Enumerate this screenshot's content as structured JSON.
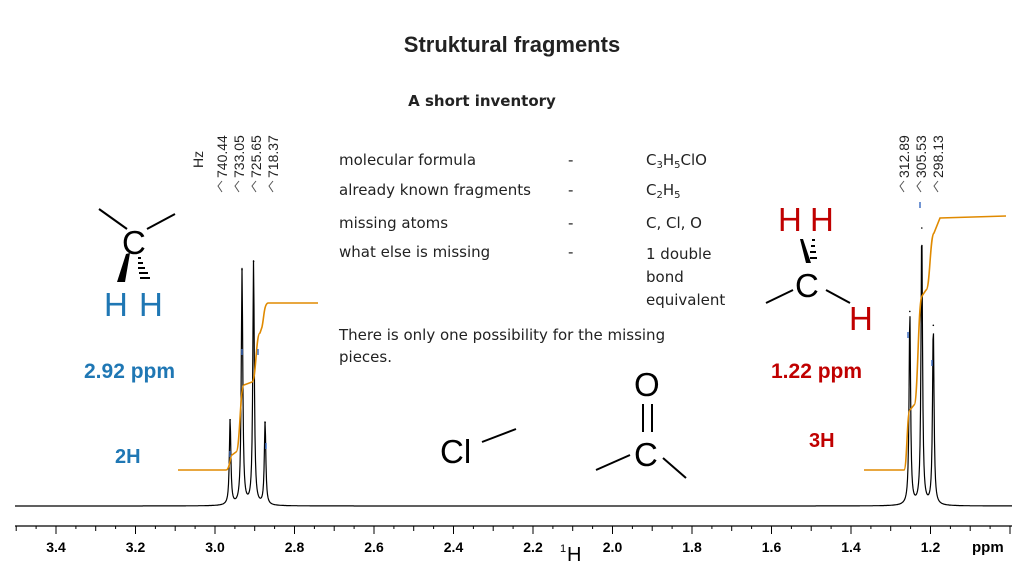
{
  "title": "Struktural fragments",
  "subtitle": "A short inventory",
  "inventory": [
    {
      "label": "molecular formula",
      "dash": "-",
      "value": "C3H5ClO"
    },
    {
      "label": "already known fragments",
      "dash": "-",
      "value": "C2H5"
    },
    {
      "label": "missing atoms",
      "dash": "-",
      "value": "C, Cl, O"
    },
    {
      "label": "what else is missing",
      "dash": "-",
      "value": "1 double bond equivalent"
    }
  ],
  "formula_parts": {
    "c": "C",
    "c_n": "3",
    "h": "H",
    "h_n": "5",
    "rest": "ClO",
    "c2": "C",
    "c2_n": "2",
    "h2": "H",
    "h2_n": "5"
  },
  "value_lines": {
    "l1": "1 double",
    "l2": "bond",
    "l3": "equivalent"
  },
  "note": {
    "line1": "There is only one possibility for the missing",
    "line2": "pieces."
  },
  "peak_labels": {
    "unit": "Hz",
    "left": [
      "740.44",
      "733.05",
      "725.65",
      "718.37"
    ],
    "right": [
      "312.89",
      "305.53",
      "298.13"
    ]
  },
  "fragments": {
    "ch2": {
      "atom": "C",
      "h1": "H",
      "h2": "H",
      "shift": "2.92 ppm",
      "integral": "2H",
      "color": "#1f77b4"
    },
    "ch3": {
      "atom": "C",
      "h1": "H",
      "h2": "H",
      "h3": "H",
      "shift": "1.22 ppm",
      "integral": "3H",
      "color": "#c00000"
    },
    "chloro": {
      "atom": "Cl"
    },
    "carbonyl": {
      "o": "O",
      "c": "C"
    }
  },
  "axis": {
    "unit": "ppm",
    "nucleus_mass": "1",
    "nucleus": "H",
    "ticks": [
      "3.4",
      "3.2",
      "3.0",
      "2.8",
      "2.6",
      "2.4",
      "2.2",
      "2.0",
      "1.8",
      "1.6",
      "1.4",
      "1.2"
    ]
  },
  "chart_data": {
    "type": "line",
    "xlabel": "ppm",
    "nucleus": "1H",
    "xlim": [
      3.5,
      1.0
    ],
    "reversed_x": true,
    "peaks": [
      {
        "ppm": 2.962,
        "height": 0.31,
        "label": "740.44"
      },
      {
        "ppm": 2.932,
        "height": 0.85,
        "label": "733.05"
      },
      {
        "ppm": 2.903,
        "height": 0.88,
        "label": "725.65"
      },
      {
        "ppm": 2.874,
        "height": 0.3,
        "label": "718.37"
      },
      {
        "ppm": 1.252,
        "height": 0.7,
        "label": "312.89"
      },
      {
        "ppm": 1.222,
        "height": 1.0,
        "label": "305.53"
      },
      {
        "ppm": 1.193,
        "height": 0.65,
        "label": "298.13"
      }
    ],
    "integrals": [
      {
        "range": [
          2.98,
          2.86
        ],
        "value": "2H",
        "center": 2.92
      },
      {
        "range": [
          1.27,
          1.18
        ],
        "value": "3H",
        "center": 1.22
      }
    ],
    "line_color": "#000000",
    "integral_color": "#e08a00"
  }
}
